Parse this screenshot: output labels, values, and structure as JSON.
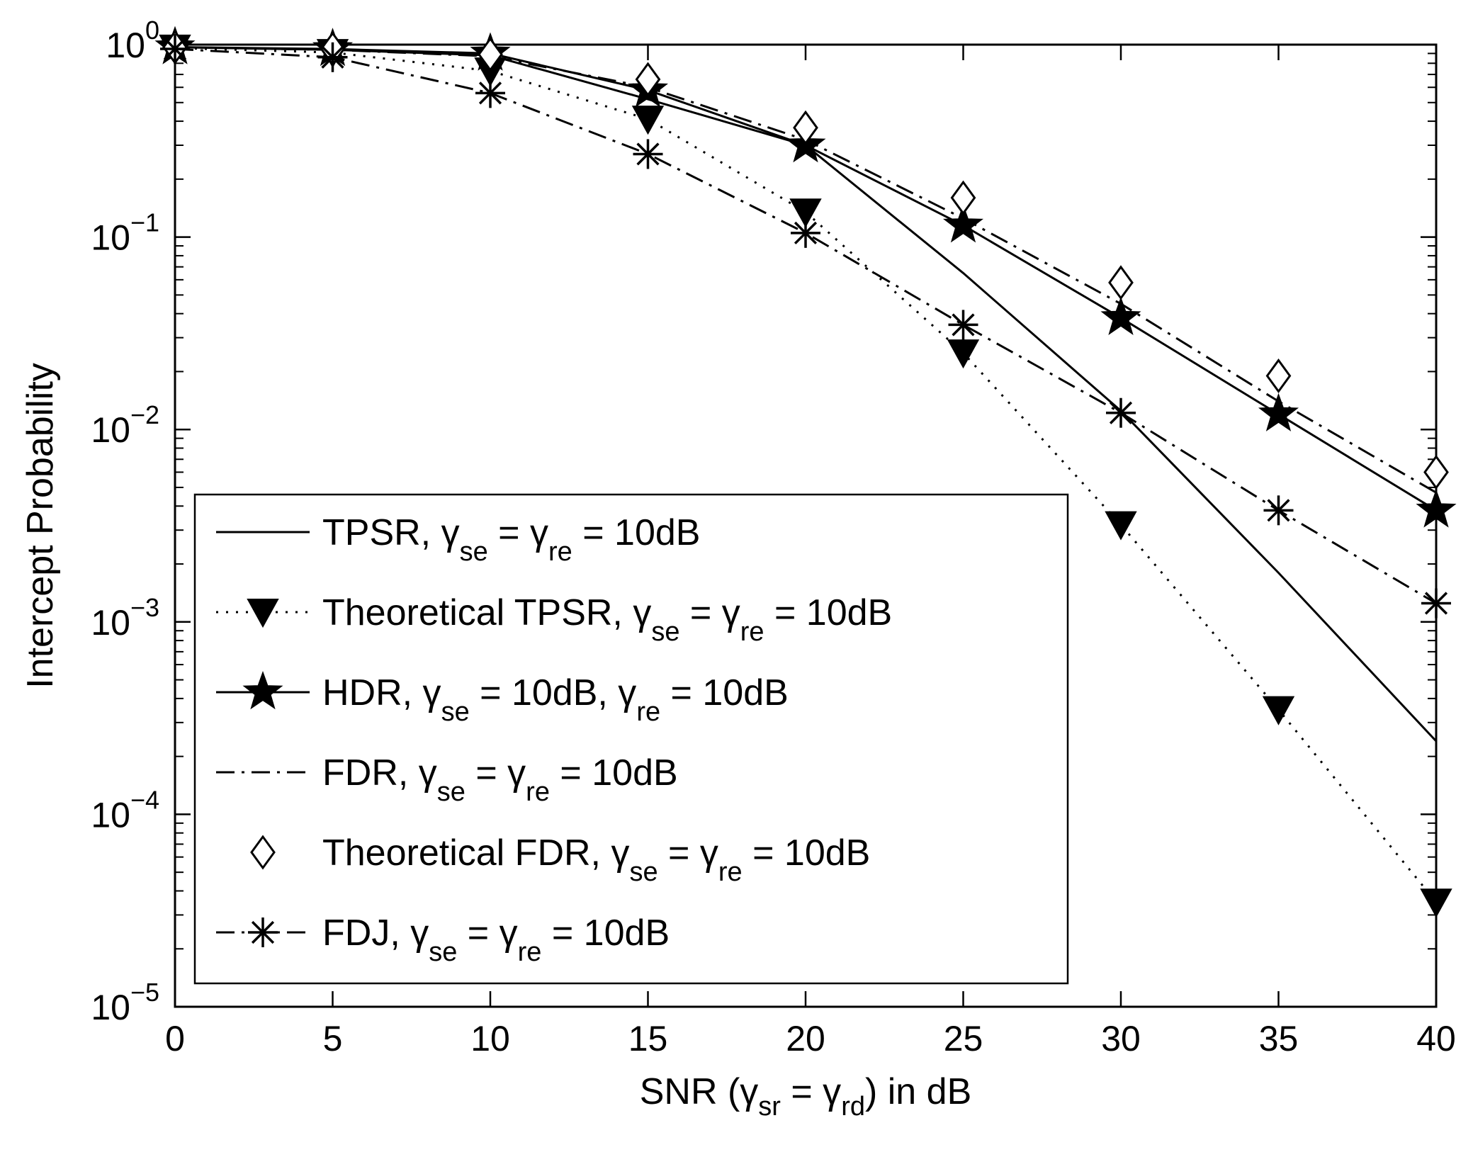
{
  "chart_data": {
    "type": "line",
    "title": "",
    "xlabel": "SNR (γsr = γrd) in dB",
    "xlabel_parts": {
      "prefix": "SNR (γ",
      "sub1": "sr",
      "middle": " = γ",
      "sub2": "rd",
      "suffix": ") in dB"
    },
    "ylabel": "Intercept Probability",
    "xlim": [
      0,
      40
    ],
    "ylim": [
      1e-05,
      1
    ],
    "yscale": "log",
    "x_ticks": [
      "0",
      "5",
      "10",
      "15",
      "20",
      "25",
      "30",
      "35",
      "40"
    ],
    "y_ticks": [
      {
        "base": "10",
        "exp": "0",
        "value": 1
      },
      {
        "base": "10",
        "exp": "−1",
        "value": 0.1
      },
      {
        "base": "10",
        "exp": "−2",
        "value": 0.01
      },
      {
        "base": "10",
        "exp": "−3",
        "value": 0.001
      },
      {
        "base": "10",
        "exp": "−4",
        "value": 0.0001
      },
      {
        "base": "10",
        "exp": "−5",
        "value": 1e-05
      }
    ],
    "x": [
      0,
      5,
      10,
      15,
      20,
      25,
      30,
      35,
      40
    ],
    "legend_position": "bottom-left",
    "series": [
      {
        "name": "TPSR, γse =  γre = 10dB",
        "label_parts": [
          {
            "t": "TPSR, γ"
          },
          {
            "t": "se",
            "sub": true
          },
          {
            "t": " =  γ"
          },
          {
            "t": "re",
            "sub": true
          },
          {
            "t": " = 10dB"
          }
        ],
        "line": "solid",
        "marker": "none",
        "values": [
          0.97,
          0.94,
          0.88,
          0.52,
          0.3,
          0.065,
          0.0125,
          0.0018,
          0.00024
        ]
      },
      {
        "name": "Theoretical TPSR, γse =  γre = 10dB",
        "label_parts": [
          {
            "t": "Theoretical TPSR, γ"
          },
          {
            "t": "se",
            "sub": true
          },
          {
            "t": " =  γ"
          },
          {
            "t": "re",
            "sub": true
          },
          {
            "t": " = 10dB"
          }
        ],
        "line": "dotted",
        "marker": "triangle-down",
        "values": [
          0.96,
          0.91,
          0.73,
          0.41,
          0.135,
          0.025,
          0.0032,
          0.00035,
          3.5e-05
        ]
      },
      {
        "name": "HDR, γse = 10dB, γre = 10dB",
        "label_parts": [
          {
            "t": "HDR, γ"
          },
          {
            "t": "se",
            "sub": true
          },
          {
            "t": " = 10dB, γ"
          },
          {
            "t": "re",
            "sub": true
          },
          {
            "t": " = 10dB"
          }
        ],
        "line": "solid",
        "marker": "star",
        "values": [
          0.97,
          0.95,
          0.9,
          0.58,
          0.3,
          0.115,
          0.038,
          0.012,
          0.0038
        ]
      },
      {
        "name": "FDR, γse =  γre = 10dB",
        "label_parts": [
          {
            "t": "FDR, γ"
          },
          {
            "t": "se",
            "sub": true
          },
          {
            "t": " =  γ"
          },
          {
            "t": "re",
            "sub": true
          },
          {
            "t": " = 10dB"
          }
        ],
        "line": "dashdot",
        "marker": "none",
        "values": [
          0.97,
          0.94,
          0.87,
          0.6,
          0.32,
          0.125,
          0.045,
          0.014,
          0.0047
        ]
      },
      {
        "name": "Theoretical FDR, γse =  γre = 10dB",
        "label_parts": [
          {
            "t": "Theoretical FDR, γ"
          },
          {
            "t": "se",
            "sub": true
          },
          {
            "t": " =  γ"
          },
          {
            "t": "re",
            "sub": true
          },
          {
            "t": " = 10dB"
          }
        ],
        "line": "none",
        "marker": "diamond",
        "values": [
          0.97,
          0.95,
          0.89,
          0.66,
          0.37,
          0.16,
          0.058,
          0.019,
          0.006
        ]
      },
      {
        "name": "FDJ, γse =  γre = 10dB",
        "label_parts": [
          {
            "t": "FDJ, γ"
          },
          {
            "t": "se",
            "sub": true
          },
          {
            "t": " =  γ"
          },
          {
            "t": "re",
            "sub": true
          },
          {
            "t": " = 10dB"
          }
        ],
        "line": "dashdot",
        "marker": "asterisk",
        "values": [
          0.95,
          0.86,
          0.56,
          0.27,
          0.105,
          0.035,
          0.0122,
          0.0038,
          0.00125
        ]
      }
    ]
  }
}
